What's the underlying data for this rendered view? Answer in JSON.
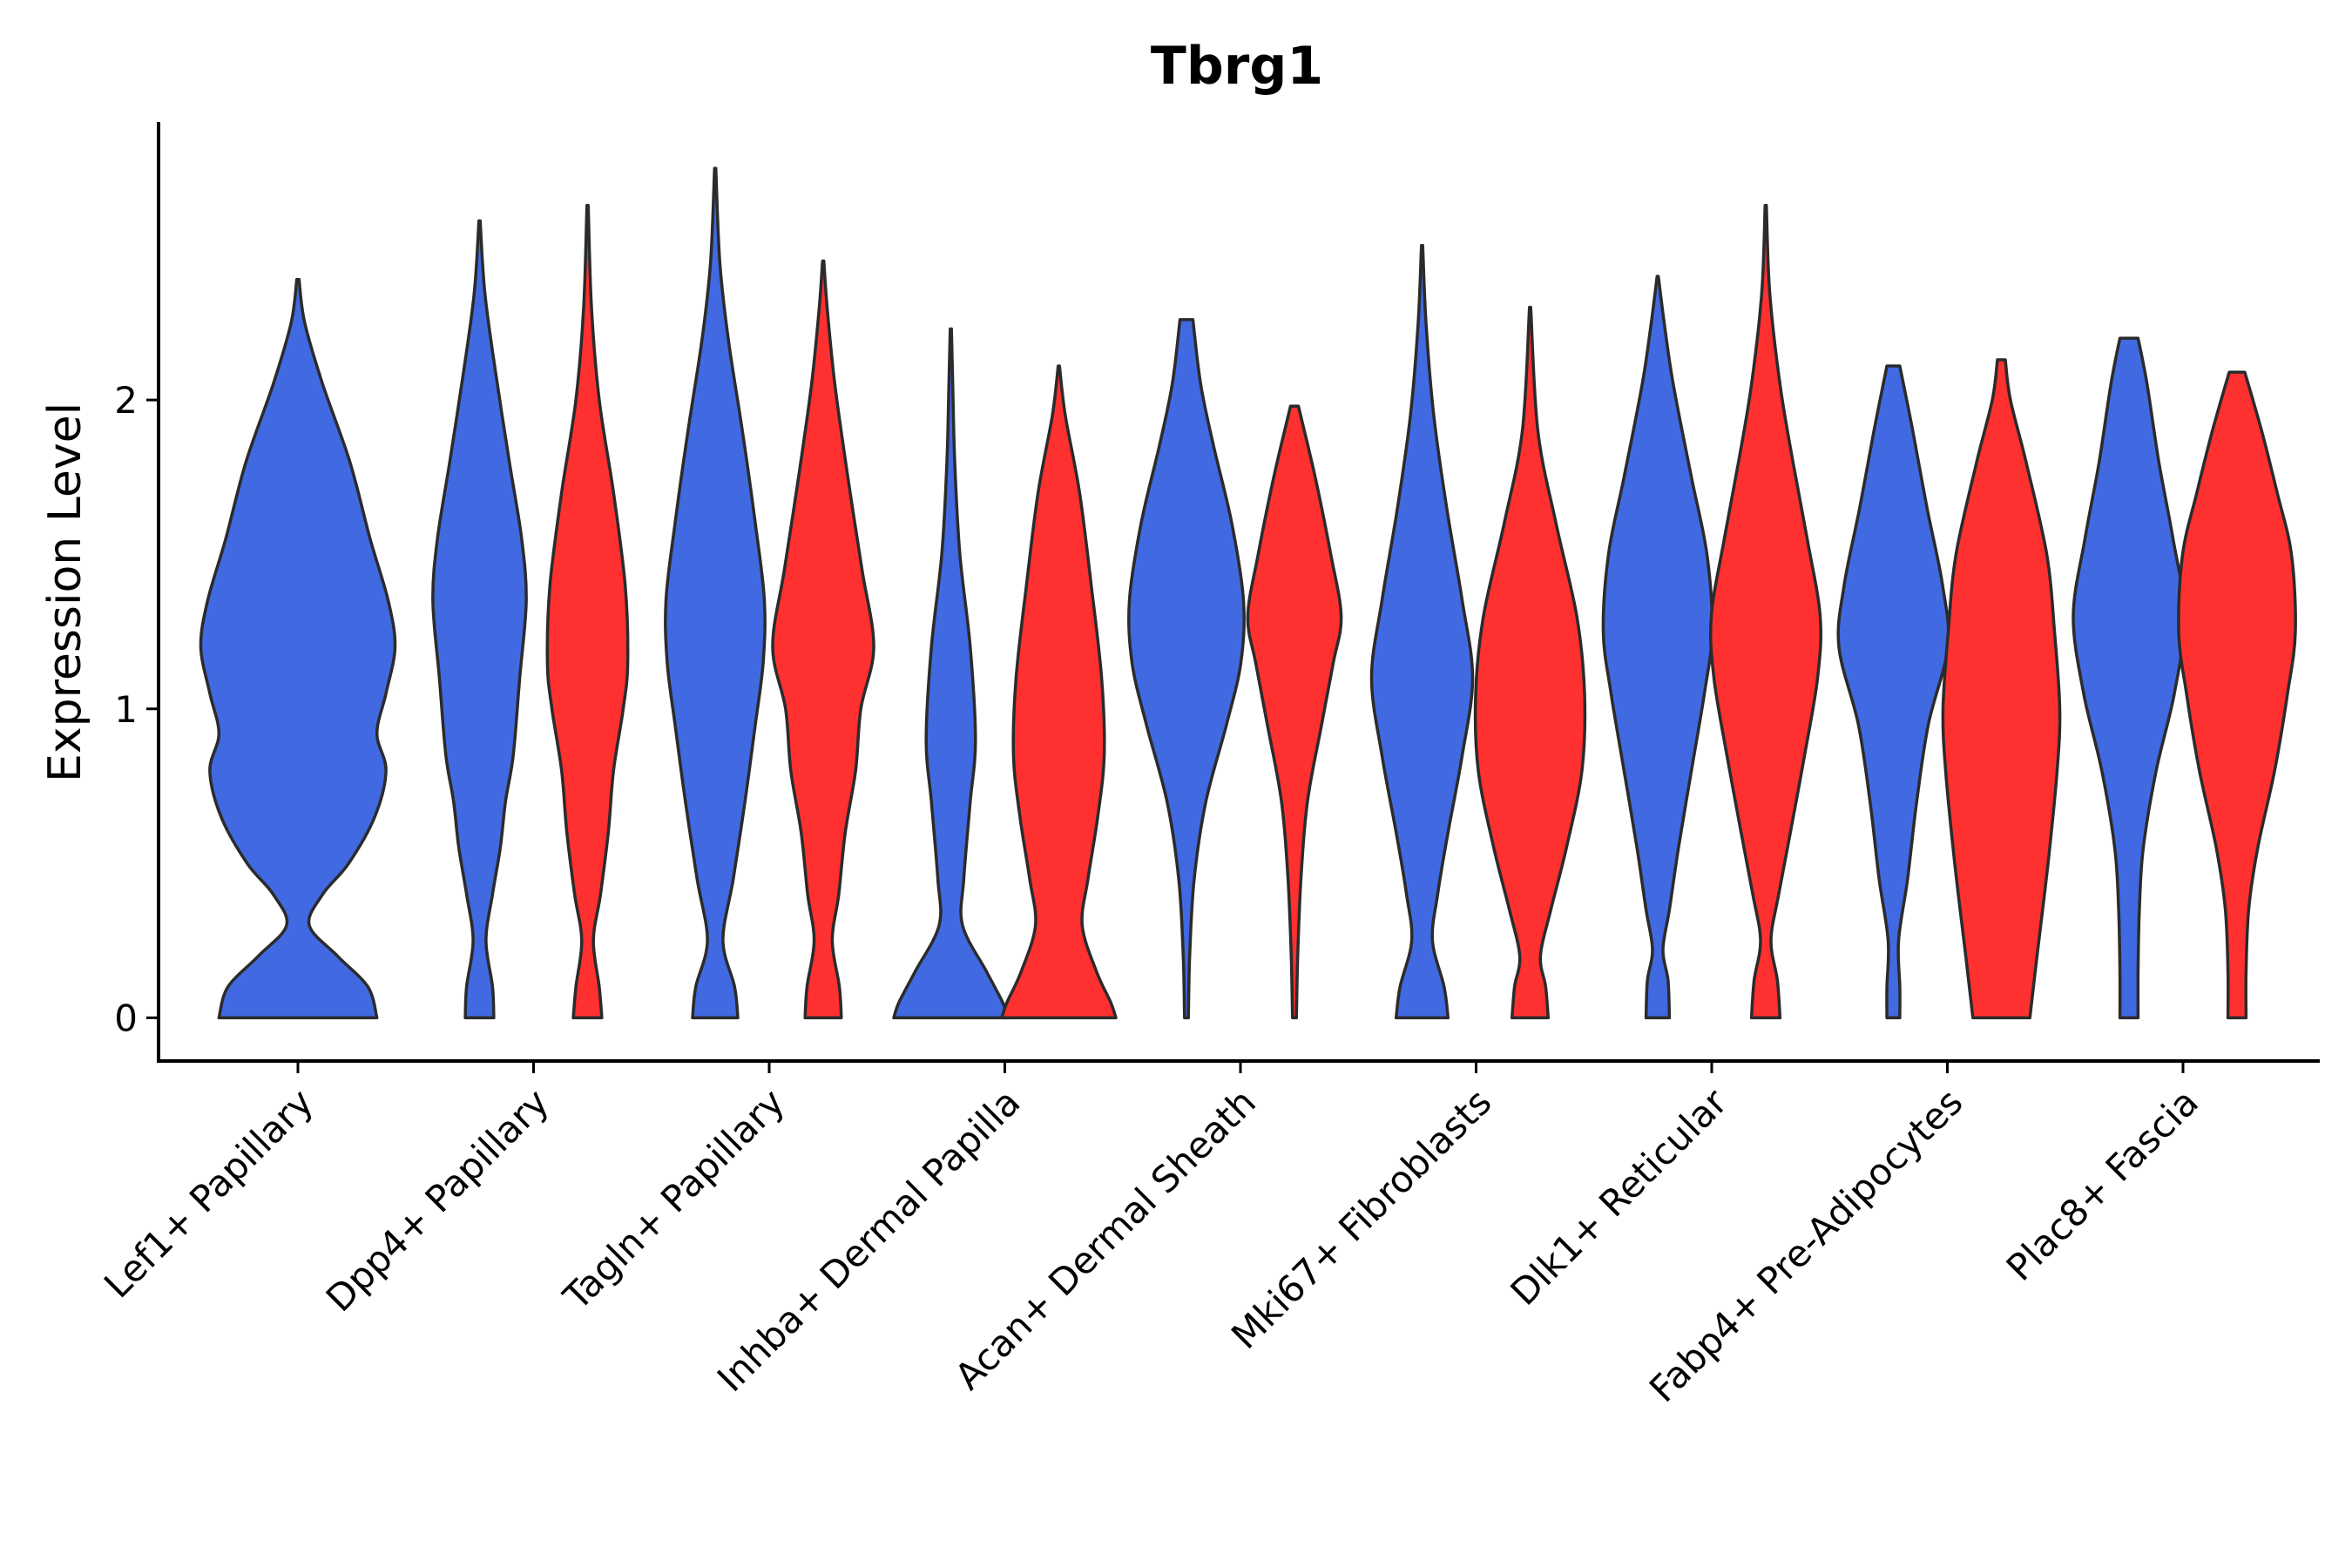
{
  "chart_data": {
    "type": "violin",
    "title": "Tbrg1",
    "xlabel": "",
    "ylabel": "Expression Level",
    "ylim": [
      -0.14,
      2.9
    ],
    "yticks": [
      0,
      1,
      2
    ],
    "grid": false,
    "legend": "none",
    "colors": {
      "group1": "#4169E1",
      "group2": "#FF3030",
      "outline": "#2b2b2b"
    },
    "categories": [
      "Lef1+ Papillary",
      "Dpp4+ Papillary",
      "Tagln+ Papillary",
      "Inhba+ Dermal Papilla",
      "Acan+ Dermal Sheath",
      "Mki67+ Fibroblasts",
      "Dlk1+ Reticular",
      "Fabp4+ Pre-Adipocytes",
      "Plac8+ Fascia"
    ],
    "violins": [
      {
        "category": 0,
        "group": "group1",
        "max": 2.39,
        "profile": [
          [
            0,
            0.7
          ],
          [
            0.1,
            0.62
          ],
          [
            0.2,
            0.35
          ],
          [
            0.3,
            0.1
          ],
          [
            0.4,
            0.22
          ],
          [
            0.5,
            0.45
          ],
          [
            0.65,
            0.68
          ],
          [
            0.8,
            0.78
          ],
          [
            0.92,
            0.7
          ],
          [
            1.05,
            0.78
          ],
          [
            1.2,
            0.86
          ],
          [
            1.35,
            0.8
          ],
          [
            1.55,
            0.64
          ],
          [
            1.8,
            0.46
          ],
          [
            2.05,
            0.22
          ],
          [
            2.25,
            0.06
          ],
          [
            2.39,
            0.01
          ]
        ]
      },
      {
        "category": 1,
        "group": "group1",
        "max": 2.58,
        "profile": [
          [
            0,
            0.22
          ],
          [
            0.1,
            0.2
          ],
          [
            0.25,
            0.1
          ],
          [
            0.4,
            0.2
          ],
          [
            0.55,
            0.32
          ],
          [
            0.7,
            0.4
          ],
          [
            0.85,
            0.52
          ],
          [
            1.1,
            0.62
          ],
          [
            1.35,
            0.72
          ],
          [
            1.55,
            0.65
          ],
          [
            1.8,
            0.46
          ],
          [
            2.1,
            0.24
          ],
          [
            2.35,
            0.08
          ],
          [
            2.58,
            0.01
          ]
        ]
      },
      {
        "category": 1,
        "group": "group2",
        "max": 2.63,
        "profile": [
          [
            0,
            0.22
          ],
          [
            0.1,
            0.18
          ],
          [
            0.25,
            0.09
          ],
          [
            0.4,
            0.2
          ],
          [
            0.6,
            0.32
          ],
          [
            0.8,
            0.4
          ],
          [
            1.0,
            0.55
          ],
          [
            1.15,
            0.62
          ],
          [
            1.4,
            0.58
          ],
          [
            1.7,
            0.4
          ],
          [
            2.0,
            0.18
          ],
          [
            2.3,
            0.06
          ],
          [
            2.63,
            0.01
          ]
        ]
      },
      {
        "category": 2,
        "group": "group1",
        "max": 2.75,
        "profile": [
          [
            0,
            0.35
          ],
          [
            0.1,
            0.3
          ],
          [
            0.25,
            0.12
          ],
          [
            0.45,
            0.28
          ],
          [
            0.7,
            0.46
          ],
          [
            0.95,
            0.62
          ],
          [
            1.15,
            0.74
          ],
          [
            1.35,
            0.76
          ],
          [
            1.6,
            0.62
          ],
          [
            1.9,
            0.42
          ],
          [
            2.2,
            0.2
          ],
          [
            2.45,
            0.07
          ],
          [
            2.75,
            0.01
          ]
        ]
      },
      {
        "category": 2,
        "group": "group2",
        "max": 2.45,
        "profile": [
          [
            0,
            0.28
          ],
          [
            0.1,
            0.25
          ],
          [
            0.25,
            0.14
          ],
          [
            0.4,
            0.24
          ],
          [
            0.6,
            0.34
          ],
          [
            0.8,
            0.5
          ],
          [
            1.0,
            0.58
          ],
          [
            1.2,
            0.78
          ],
          [
            1.45,
            0.6
          ],
          [
            1.75,
            0.38
          ],
          [
            2.05,
            0.18
          ],
          [
            2.3,
            0.06
          ],
          [
            2.45,
            0.01
          ]
        ]
      },
      {
        "category": 3,
        "group": "group1",
        "max": 2.23,
        "profile": [
          [
            0,
            0.88
          ],
          [
            0.05,
            0.8
          ],
          [
            0.15,
            0.55
          ],
          [
            0.3,
            0.18
          ],
          [
            0.45,
            0.2
          ],
          [
            0.7,
            0.3
          ],
          [
            0.9,
            0.38
          ],
          [
            1.2,
            0.3
          ],
          [
            1.5,
            0.14
          ],
          [
            1.8,
            0.06
          ],
          [
            2.05,
            0.03
          ],
          [
            2.23,
            0.01
          ]
        ]
      },
      {
        "category": 3,
        "group": "group2",
        "max": 2.11,
        "profile": [
          [
            0,
            0.88
          ],
          [
            0.05,
            0.8
          ],
          [
            0.15,
            0.58
          ],
          [
            0.3,
            0.36
          ],
          [
            0.45,
            0.45
          ],
          [
            0.65,
            0.6
          ],
          [
            0.85,
            0.7
          ],
          [
            1.1,
            0.66
          ],
          [
            1.4,
            0.5
          ],
          [
            1.7,
            0.32
          ],
          [
            1.95,
            0.1
          ],
          [
            2.11,
            0.01
          ]
        ]
      },
      {
        "category": 4,
        "group": "group1",
        "max": 2.26,
        "profile": [
          [
            0,
            0.03
          ],
          [
            0.2,
            0.05
          ],
          [
            0.45,
            0.12
          ],
          [
            0.7,
            0.3
          ],
          [
            0.95,
            0.62
          ],
          [
            1.15,
            0.84
          ],
          [
            1.35,
            0.88
          ],
          [
            1.6,
            0.7
          ],
          [
            1.85,
            0.42
          ],
          [
            2.05,
            0.22
          ],
          [
            2.26,
            0.1
          ]
        ]
      },
      {
        "category": 4,
        "group": "group2",
        "max": 1.98,
        "profile": [
          [
            0,
            0.03
          ],
          [
            0.2,
            0.05
          ],
          [
            0.45,
            0.1
          ],
          [
            0.7,
            0.2
          ],
          [
            0.95,
            0.42
          ],
          [
            1.15,
            0.6
          ],
          [
            1.3,
            0.72
          ],
          [
            1.5,
            0.56
          ],
          [
            1.75,
            0.32
          ],
          [
            1.98,
            0.06
          ]
        ]
      },
      {
        "category": 5,
        "group": "group1",
        "max": 2.5,
        "profile": [
          [
            0,
            0.4
          ],
          [
            0.1,
            0.34
          ],
          [
            0.25,
            0.16
          ],
          [
            0.4,
            0.24
          ],
          [
            0.6,
            0.4
          ],
          [
            0.85,
            0.62
          ],
          [
            1.1,
            0.78
          ],
          [
            1.35,
            0.62
          ],
          [
            1.65,
            0.38
          ],
          [
            1.95,
            0.18
          ],
          [
            2.25,
            0.06
          ],
          [
            2.5,
            0.01
          ]
        ]
      },
      {
        "category": 5,
        "group": "group2",
        "max": 2.3,
        "profile": [
          [
            0,
            0.28
          ],
          [
            0.1,
            0.24
          ],
          [
            0.2,
            0.16
          ],
          [
            0.35,
            0.32
          ],
          [
            0.55,
            0.56
          ],
          [
            0.8,
            0.8
          ],
          [
            1.05,
            0.84
          ],
          [
            1.3,
            0.72
          ],
          [
            1.6,
            0.4
          ],
          [
            1.9,
            0.12
          ],
          [
            2.3,
            0.01
          ]
        ]
      },
      {
        "category": 6,
        "group": "group1",
        "max": 2.4,
        "profile": [
          [
            0,
            0.18
          ],
          [
            0.12,
            0.16
          ],
          [
            0.22,
            0.08
          ],
          [
            0.35,
            0.18
          ],
          [
            0.55,
            0.32
          ],
          [
            0.8,
            0.52
          ],
          [
            1.05,
            0.72
          ],
          [
            1.25,
            0.84
          ],
          [
            1.5,
            0.76
          ],
          [
            1.75,
            0.52
          ],
          [
            2.05,
            0.24
          ],
          [
            2.25,
            0.1
          ],
          [
            2.4,
            0.01
          ]
        ]
      },
      {
        "category": 6,
        "group": "group2",
        "max": 2.63,
        "profile": [
          [
            0,
            0.22
          ],
          [
            0.12,
            0.18
          ],
          [
            0.25,
            0.08
          ],
          [
            0.4,
            0.2
          ],
          [
            0.6,
            0.38
          ],
          [
            0.85,
            0.6
          ],
          [
            1.1,
            0.8
          ],
          [
            1.3,
            0.84
          ],
          [
            1.55,
            0.64
          ],
          [
            1.8,
            0.42
          ],
          [
            2.05,
            0.22
          ],
          [
            2.35,
            0.06
          ],
          [
            2.63,
            0.01
          ]
        ]
      },
      {
        "category": 7,
        "group": "group1",
        "max": 2.11,
        "profile": [
          [
            0,
            0.1
          ],
          [
            0.1,
            0.1
          ],
          [
            0.25,
            0.08
          ],
          [
            0.45,
            0.22
          ],
          [
            0.7,
            0.36
          ],
          [
            0.95,
            0.54
          ],
          [
            1.2,
            0.84
          ],
          [
            1.4,
            0.76
          ],
          [
            1.65,
            0.52
          ],
          [
            1.9,
            0.3
          ],
          [
            2.11,
            0.1
          ]
        ]
      },
      {
        "category": 7,
        "group": "group2",
        "max": 2.13,
        "profile": [
          [
            0,
            0.44
          ],
          [
            0.2,
            0.55
          ],
          [
            0.5,
            0.72
          ],
          [
            0.8,
            0.86
          ],
          [
            1.0,
            0.9
          ],
          [
            1.25,
            0.82
          ],
          [
            1.5,
            0.7
          ],
          [
            1.8,
            0.38
          ],
          [
            2.0,
            0.14
          ],
          [
            2.13,
            0.06
          ]
        ]
      },
      {
        "category": 8,
        "group": "group1",
        "max": 2.2,
        "profile": [
          [
            0,
            0.14
          ],
          [
            0.15,
            0.14
          ],
          [
            0.35,
            0.16
          ],
          [
            0.55,
            0.22
          ],
          [
            0.8,
            0.42
          ],
          [
            1.05,
            0.7
          ],
          [
            1.3,
            0.86
          ],
          [
            1.55,
            0.68
          ],
          [
            1.8,
            0.46
          ],
          [
            2.05,
            0.28
          ],
          [
            2.2,
            0.14
          ]
        ]
      },
      {
        "category": 8,
        "group": "group2",
        "max": 2.09,
        "profile": [
          [
            0,
            0.14
          ],
          [
            0.15,
            0.14
          ],
          [
            0.35,
            0.18
          ],
          [
            0.55,
            0.32
          ],
          [
            0.8,
            0.58
          ],
          [
            1.05,
            0.78
          ],
          [
            1.25,
            0.9
          ],
          [
            1.5,
            0.84
          ],
          [
            1.7,
            0.62
          ],
          [
            1.9,
            0.38
          ],
          [
            2.09,
            0.12
          ]
        ]
      }
    ]
  }
}
